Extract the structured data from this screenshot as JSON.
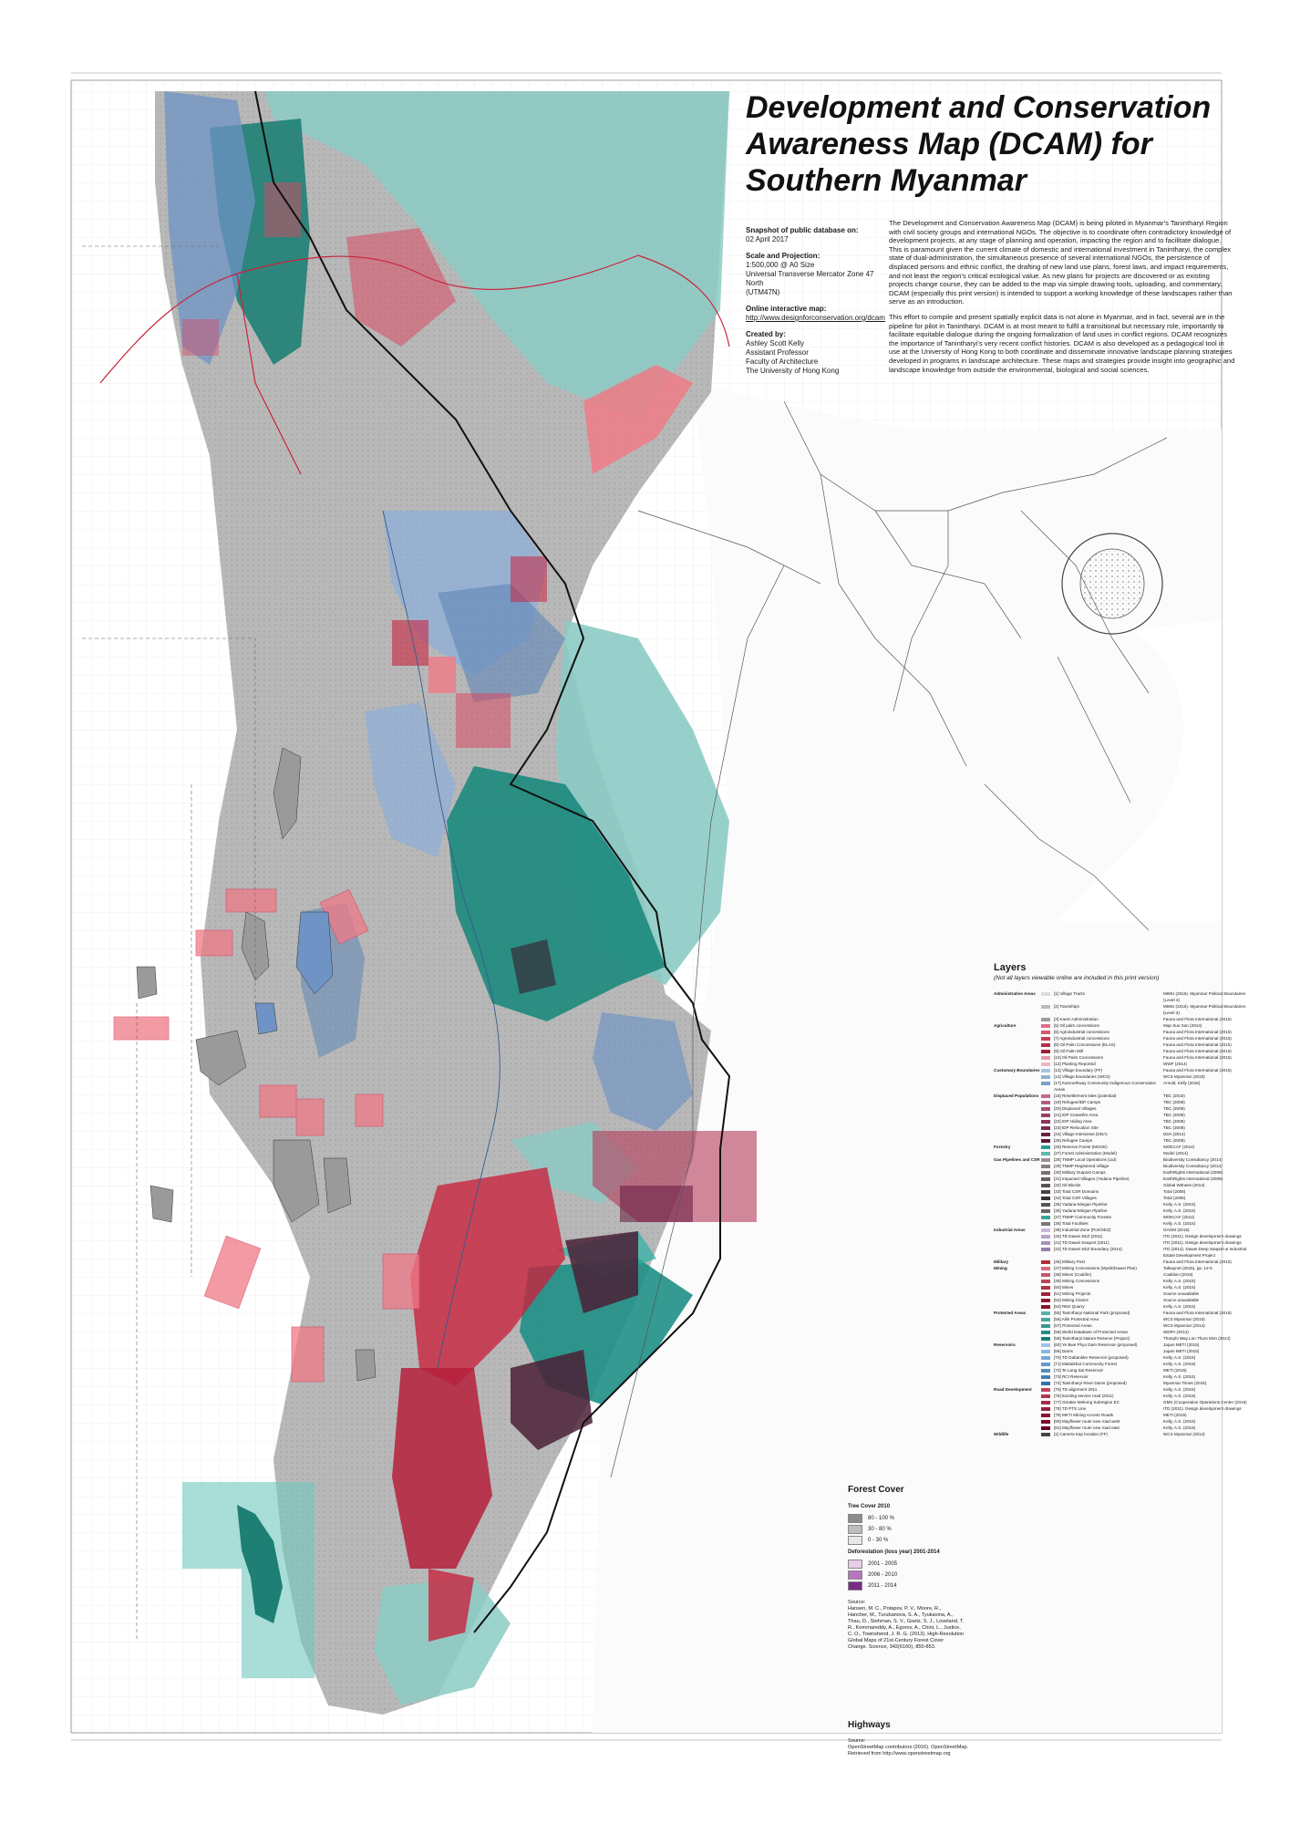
{
  "title": "Development and Conservation Awareness Map (DCAM) for Southern Myanmar",
  "meta": {
    "snapshot_label": "Snapshot of public database on:",
    "snapshot_date": "02 April 2017",
    "scale_label": "Scale and Projection:",
    "scale_value": "1:500,000 @ A0 Size\nUniversal Transverse Mercator Zone 47 North\n(UTM47N)",
    "online_label": "Online interactive map:",
    "online_url": "http://www.designforconservation.org/dcam",
    "created_label": "Created by:",
    "created_value": "Ashley Scott Kelly\nAssistant Professor\nFaculty of Architecture\nThe University of Hong Kong"
  },
  "description": [
    "The Development and Conservation Awareness Map (DCAM) is being piloted in Myanmar's Tanintharyi Region with civil society groups and international NGOs. The objective is to coordinate often contradictory knowledge of development projects, at any stage of planning and operation, impacting the region and to facilitate dialogue. This is paramount given the current climate of domestic and international investment in Tanintharyi, the complex state of dual-administration, the simultaneous presence of several international NGOs, the persistence of displaced persons and ethnic conflict, the drafting of new land use plans, forest laws, and impact requirements, and not least the region's critical ecological value. As new plans for projects are discovered or as existing projects change course, they can be added to the map via simple drawing tools, uploading, and commentary. DCAM (especially this print version) is intended to support a working knowledge of these landscapes rather than serve as an introduction.",
    "This effort to compile and present spatially explicit data is not alone in Myanmar, and in fact, several are in the pipeline for pilot in Tanintharyi. DCAM is at most meant to fulfil a transitional but necessary role, importantly to facilitate equitable dialogue during the ongoing formalization of land uses in conflict regions. DCAM recognizes the importance of Tanintharyi's very recent conflict histories. DCAM is also developed as a pedagogical tool in use at the University of Hong Kong to both coordinate and disseminate innovative landscape planning strategies developed in programs in landscape architecture. These maps and strategies provide insight into geographic and landscape knowledge from outside the environmental, biological and social sciences."
  ],
  "layers": {
    "title": "Layers",
    "note": "(Not all layers viewable online are included in this print version)",
    "rows": [
      {
        "cat": "Administrative Areas",
        "label": "[1] Village Tracts",
        "src": "MIMU (2015). Myanmar Political Boundaries (Level 4)",
        "color": "#dcdcdc"
      },
      {
        "cat": "",
        "label": "[2] Townships",
        "src": "MIMU (2015). Myanmar Political Boundaries (Level 3)",
        "color": "#bcbcbc"
      },
      {
        "cat": "",
        "label": "[3] Karen Administration",
        "src": "Fauna and Flora International (2015)",
        "color": "#9c9c9c"
      },
      {
        "cat": "Agriculture",
        "label": "[5] Oil palm concessions",
        "src": "Map Sue San (2014)",
        "color": "#e0708a"
      },
      {
        "cat": "",
        "label": "[6] Agroindustrial concessions",
        "src": "Fauna and Flora International (2015)",
        "color": "#d9566f"
      },
      {
        "cat": "",
        "label": "[7] Agroindustrial concessions",
        "src": "Fauna and Flora International (2015)",
        "color": "#c73d57"
      },
      {
        "cat": "",
        "label": "[8] Oil Palm Concessions (ELAS)",
        "src": "Fauna and Flora International (2015)",
        "color": "#b52f48"
      },
      {
        "cat": "",
        "label": "[9] Oil Palm Mill",
        "src": "Fauna and Flora International (2015)",
        "color": "#a02239"
      },
      {
        "cat": "",
        "label": "[10] Oil Palm Concessions",
        "src": "Fauna and Flora International (2015)",
        "color": "#e79aa8"
      },
      {
        "cat": "",
        "label": "[12] Planting Reported",
        "src": "WWF (2014)",
        "color": "#f0b5c0"
      },
      {
        "cat": "Customary Boundaries",
        "label": "[13] Village boundary (FF)",
        "src": "Fauna and Flora International (2015)",
        "color": "#a6c4e0"
      },
      {
        "cat": "",
        "label": "[14] Village boundaries (WCS)",
        "src": "WCS Myanmar (2015)",
        "color": "#8fb1d6"
      },
      {
        "cat": "",
        "label": "[17] Kamoethway Community Indigenous Conservation Areas",
        "src": "Arnold, Kelly (2016)",
        "color": "#7a9fc9"
      },
      {
        "cat": "Displaced Populations",
        "label": "[18] Resettlement sites (potential)",
        "src": "TBC (2015)",
        "color": "#c06b8f"
      },
      {
        "cat": "",
        "label": "[19] Refugee/IDP Camps",
        "src": "TBC (2008)",
        "color": "#b55d84"
      },
      {
        "cat": "",
        "label": "[20] Displaced Villages",
        "src": "TBC (2008)",
        "color": "#a64f77"
      },
      {
        "cat": "",
        "label": "[21] IDP Ceasefire Area",
        "src": "TBC (2008)",
        "color": "#974369"
      },
      {
        "cat": "",
        "label": "[22] IDP Hiding Area",
        "src": "TBC (2008)",
        "color": "#88375c"
      },
      {
        "cat": "",
        "label": "[23] IDP Relocation Site",
        "src": "TBC (2008)",
        "color": "#7a2c50"
      },
      {
        "cat": "",
        "label": "[24] Village Interviews (DDA)",
        "src": "DDA (2014)",
        "color": "#6b2245"
      },
      {
        "cat": "",
        "label": "[25] Refugee Camps",
        "src": "TBC (2008)",
        "color": "#5d193a"
      },
      {
        "cat": "Forestry",
        "label": "[26] Reserve Forest (MOGE)",
        "src": "MOECAF (2014)",
        "color": "#2a9b90"
      },
      {
        "cat": "",
        "label": "[27] Forest Administration (Model)",
        "src": "Model (2014)",
        "color": "#5cb9b0"
      },
      {
        "cat": "Gas Pipelines and CSR",
        "label": "[28] TNMP Local Operations (Ltd)",
        "src": "Biodiversity Consultancy (2014)",
        "color": "#9a8f96"
      },
      {
        "cat": "",
        "label": "[29] TNMP Registered Village",
        "src": "Biodiversity Consultancy (2014)",
        "color": "#8a7f86"
      },
      {
        "cat": "",
        "label": "[30] Military Outpost Camps",
        "src": "EarthRights International (2009)",
        "color": "#7a6f76"
      },
      {
        "cat": "",
        "label": "[31] Impacted Villages (Yadana Pipeline)",
        "src": "EarthRights International (2009)",
        "color": "#6a5f66"
      },
      {
        "cat": "",
        "label": "[32] Oil Blocks",
        "src": "Global Witness (2014)",
        "color": "#5a4f56"
      },
      {
        "cat": "",
        "label": "[33] Total CSR Domains",
        "src": "Total (2008)",
        "color": "#4a3f46"
      },
      {
        "cat": "",
        "label": "[34] Total CSR Villages",
        "src": "Total (2008)",
        "color": "#3a2f36"
      },
      {
        "cat": "",
        "label": "[35] Yadana-Mingan Pipeline",
        "src": "Kelly, A.S. (2015)",
        "color": "#555555"
      },
      {
        "cat": "",
        "label": "[36] Yadana-Mingan Pipeline",
        "src": "Kelly, A.S. (2015)",
        "color": "#666666"
      },
      {
        "cat": "",
        "label": "[37] TNMP Community Forests",
        "src": "MOECAF (2014)",
        "color": "#3aa69a"
      },
      {
        "cat": "",
        "label": "[38] Total Facilities",
        "src": "Kelly, A.S. (2015)",
        "color": "#777777"
      },
      {
        "cat": "Industrial Areas",
        "label": "[39] Industrial Zone (Port/SEZ)",
        "src": "GAOM (2015)",
        "color": "#c9b6d6"
      },
      {
        "cat": "",
        "label": "[40] TD Dawei SEZ (2011)",
        "src": "ITD (2011). Design development drawings",
        "color": "#b9a3c9"
      },
      {
        "cat": "",
        "label": "[41] TD Dawei Seaport (2011)",
        "src": "ITD (2011). Design development drawings",
        "color": "#a991bd"
      },
      {
        "cat": "",
        "label": "[42] TD Dawei SEZ Boundary (2014)",
        "src": "ITD (2014). Dawei Deep Seaport & Industrial Estate Development Project",
        "color": "#997fb0"
      },
      {
        "cat": "Military",
        "label": "[46] Military Post",
        "src": "Fauna and Flora International (2015)",
        "color": "#b0303f"
      },
      {
        "cat": "Mining",
        "label": "[47] Mining Concessions (Myeik/Dawei Plan)",
        "src": "Tatkaynet (2015), pp. 12-5",
        "color": "#d76b7c"
      },
      {
        "cat": "",
        "label": "[48] Mines (Coal/tin)",
        "src": "Coalition (2016)",
        "color": "#c9586b"
      },
      {
        "cat": "",
        "label": "[49] Mining Concessions",
        "src": "Kelly, A.S. (2015)",
        "color": "#bb465a"
      },
      {
        "cat": "",
        "label": "[50] Mines",
        "src": "Kelly, A.S. (2015)",
        "color": "#ad344a"
      },
      {
        "cat": "",
        "label": "[51] Mining Projects",
        "src": "Source unavailable",
        "color": "#9f233a"
      },
      {
        "cat": "",
        "label": "[52] Mining Claims",
        "src": "Source unavailable",
        "color": "#911b32"
      },
      {
        "cat": "",
        "label": "[53] REE Quarry",
        "src": "Kelly, A.S. (2015)",
        "color": "#83132a"
      },
      {
        "cat": "Protected Areas",
        "label": "[55] Tanintharyi National Park (proposed)",
        "src": "Fauna and Flora International (2015)",
        "color": "#55b3ab"
      },
      {
        "cat": "",
        "label": "[56] Allin Protected Area",
        "src": "WCS Myanmar (2015)",
        "color": "#45a69e"
      },
      {
        "cat": "",
        "label": "[57] Protected Areas",
        "src": "WCS Myanmar (2014)",
        "color": "#359990"
      },
      {
        "cat": "",
        "label": "[58] World Database of Protected Areas",
        "src": "WDPA (2014)",
        "color": "#258c83"
      },
      {
        "cat": "",
        "label": "[59] Tanintharyi Nature Reserve (Project)",
        "src": "Thanphi Way Lon Thurs Mon (2014)",
        "color": "#157f76"
      },
      {
        "cat": "Reservoirs",
        "label": "[60] Ye Bwe Phyu Dam Reservoir (proposed)",
        "src": "Japan METI (2015)",
        "color": "#9cc4ea"
      },
      {
        "cat": "",
        "label": "[68] Dams",
        "src": "Japan METI (2015)",
        "color": "#8ab6e0"
      },
      {
        "cat": "",
        "label": "[70] TD Dabankler Reservoir (proposed)",
        "src": "Kelly, A.S. (2015)",
        "color": "#78a8d6"
      },
      {
        "cat": "",
        "label": "[71] Mabaikhat Community Forest",
        "src": "Kelly, A.S. (2015)",
        "color": "#669acc"
      },
      {
        "cat": "",
        "label": "[72] Te Lang Sai Reservoir",
        "src": "METI (2015)",
        "color": "#548cc2"
      },
      {
        "cat": "",
        "label": "[73] RCI Reservoir",
        "src": "Kelly, A.S. (2015)",
        "color": "#427eb8"
      },
      {
        "cat": "",
        "label": "[74] Tanintharyi River Dams (proposed)",
        "src": "Myanmar Times (2015)",
        "color": "#3070ae"
      },
      {
        "cat": "Road Development",
        "label": "[75] TD alignment 2011",
        "src": "Kelly, A.S. (2015)",
        "color": "#c2415a"
      },
      {
        "cat": "",
        "label": "[76] Existing service road (2011)",
        "src": "Kelly, A.S. (2015)",
        "color": "#b33650"
      },
      {
        "cat": "",
        "label": "[77] Greater Mekong Subregion EC",
        "src": "GMS (Cooperation Operations Center (2015)",
        "color": "#a42b46"
      },
      {
        "cat": "",
        "label": "[78] TD PTS Line",
        "src": "ITD (2011). Design development drawings",
        "color": "#95203c"
      },
      {
        "cat": "",
        "label": "[79] MKTI Mining Access Roads",
        "src": "METI (2015)",
        "color": "#861532"
      },
      {
        "cat": "",
        "label": "[80] Mayflower route new road west",
        "src": "Kelly, A.S. (2015)",
        "color": "#770a28"
      },
      {
        "cat": "",
        "label": "[81] Mayflower route new road east",
        "src": "Kelly, A.S. (2015)",
        "color": "#68001e"
      },
      {
        "cat": "Wildlife",
        "label": "[1] Camera trap location (FF)",
        "src": "WCS Myanmar (2014)",
        "color": "#444444"
      }
    ]
  },
  "forest_cover": {
    "title": "Forest Cover",
    "tree_label": "Tree Cover 2010",
    "tree_classes": [
      {
        "label": "80 - 100 %",
        "color": "#8c8c8c"
      },
      {
        "label": "30 - 80 %",
        "color": "#bdbdbd"
      },
      {
        "label": "0 - 30 %",
        "color": "#e8e8e8"
      }
    ],
    "defor_label": "Deforestation (loss year) 2001-2014",
    "defor_classes": [
      {
        "label": "2001 - 2005",
        "color": "#e6cde8"
      },
      {
        "label": "2006 - 2010",
        "color": "#b776bf"
      },
      {
        "label": "2011 - 2014",
        "color": "#7a2b8a"
      }
    ],
    "source": "Source:\nHansen, M. C., Potapov, P. V., Moore, R.,\nHancher, M., Turubanova, S. A., Tyukavina, A.,\nThau, D., Stehman, S. V., Goetz, S. J., Loveland, T. R., Kommareddy, A., Egorov, A., Chini, L., Justice, C. O., Townshend, J. R. G. (2013). High-Resolution\nGlobal Maps of 21st-Century Forest Cover\nChange. Science, 342(6160), 850-853."
  },
  "highways": {
    "title": "Highways",
    "source": "Source:\nOpenStreetMap contributors (2016). OpenStreetMap.\nRetrieved from http://www.openstreetmap.org"
  },
  "colors": {
    "forest_teal": "#2a9b90",
    "teal_light": "#8ccbc4",
    "crimson": "#c8243f",
    "pink": "#ef7a86",
    "slate_blue": "#5e86b6",
    "light_blue": "#a9c1dd",
    "plum": "#6b2244",
    "border": "#111111",
    "gray_land": "#a9a9a9"
  }
}
